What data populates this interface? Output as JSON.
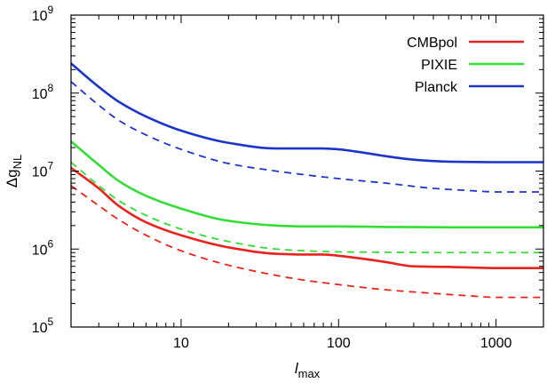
{
  "chart_data": {
    "type": "line",
    "xscale": "log",
    "yscale": "log",
    "xlim": [
      2,
      2000
    ],
    "ylim": [
      100000,
      1000000000
    ],
    "xticks": [
      {
        "value": 10,
        "label": "10"
      },
      {
        "value": 100,
        "label": "100"
      },
      {
        "value": 1000,
        "label": "1000"
      }
    ],
    "yticks": [
      {
        "value": 100000,
        "base": "10",
        "exp": "5"
      },
      {
        "value": 1000000,
        "base": "10",
        "exp": "6"
      },
      {
        "value": 10000000,
        "base": "10",
        "exp": "7"
      },
      {
        "value": 100000000,
        "base": "10",
        "exp": "8"
      },
      {
        "value": 1000000000,
        "base": "10",
        "exp": "9"
      }
    ],
    "xlabel": {
      "main": "l",
      "sub": "max"
    },
    "ylabel": {
      "main": "Δg",
      "sub": "NL"
    },
    "grid": false,
    "legend_position": "top-right",
    "series": [
      {
        "name": "CMBpol",
        "color": "#e8231e",
        "style": "solid",
        "x": [
          2,
          3,
          4,
          6,
          10,
          20,
          40,
          60,
          80,
          100,
          150,
          200,
          300,
          500,
          1000,
          2000
        ],
        "y": [
          11000000,
          6000000,
          3600000,
          2200000,
          1500000,
          1050000,
          870000,
          850000,
          850000,
          820000,
          740000,
          680000,
          600000,
          590000,
          570000,
          570000
        ]
      },
      {
        "name": "CMBpol",
        "color": "#e8231e",
        "style": "dashed",
        "x": [
          2,
          3,
          4,
          6,
          10,
          20,
          40,
          60,
          100,
          200,
          400,
          700,
          1000,
          2000
        ],
        "y": [
          6500000,
          3600000,
          2400000,
          1500000,
          950000,
          620000,
          460000,
          400000,
          350000,
          300000,
          270000,
          250000,
          240000,
          240000
        ]
      },
      {
        "name": "PIXIE",
        "color": "#33dd33",
        "style": "solid",
        "x": [
          2,
          3,
          4,
          6,
          10,
          20,
          40,
          60,
          100,
          200,
          500,
          1000,
          2000
        ],
        "y": [
          24000000,
          12000000,
          7500000,
          4800000,
          3300000,
          2300000,
          2000000,
          1950000,
          1950000,
          1920000,
          1900000,
          1900000,
          1900000
        ]
      },
      {
        "name": "PIXIE",
        "color": "#33dd33",
        "style": "dashed",
        "x": [
          2,
          3,
          4,
          6,
          10,
          20,
          40,
          60,
          100,
          200,
          500,
          1000,
          2000
        ],
        "y": [
          13000000,
          6500000,
          4200000,
          2700000,
          1800000,
          1250000,
          1000000,
          950000,
          920000,
          910000,
          900000,
          900000,
          900000
        ]
      },
      {
        "name": "Planck",
        "color": "#1c35c9",
        "style": "solid",
        "x": [
          2,
          3,
          4,
          6,
          10,
          20,
          40,
          60,
          80,
          100,
          150,
          200,
          300,
          500,
          1000,
          2000
        ],
        "y": [
          240000000,
          120000000,
          78000000,
          50000000,
          33000000,
          23000000,
          19500000,
          19500000,
          19500000,
          19000000,
          17000000,
          15500000,
          14000000,
          13200000,
          13000000,
          13000000
        ]
      },
      {
        "name": "Planck",
        "color": "#1c35c9",
        "style": "dashed",
        "x": [
          2,
          3,
          4,
          6,
          10,
          20,
          40,
          60,
          100,
          200,
          400,
          700,
          1000,
          2000
        ],
        "y": [
          140000000,
          70000000,
          45000000,
          29000000,
          19000000,
          12500000,
          10000000,
          9000000,
          8000000,
          7000000,
          6000000,
          5600000,
          5400000,
          5400000
        ]
      }
    ],
    "legend": [
      {
        "label": "CMBpol",
        "color": "#e8231e"
      },
      {
        "label": "PIXIE",
        "color": "#33dd33"
      },
      {
        "label": "Planck",
        "color": "#1c35c9"
      }
    ]
  }
}
